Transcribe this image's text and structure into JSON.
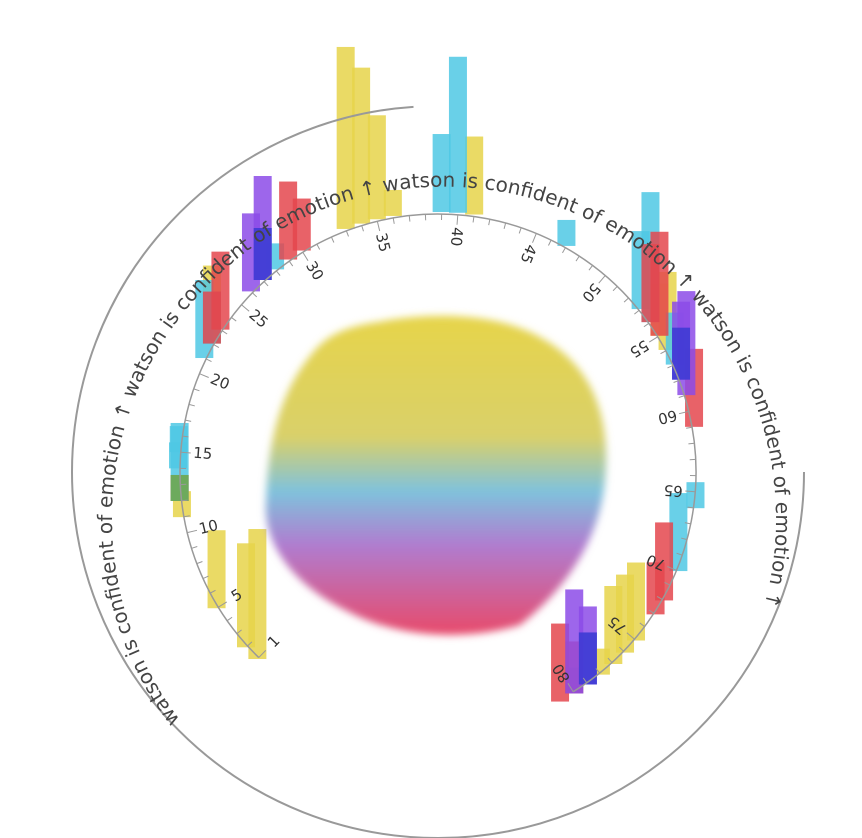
{
  "arc_caption": "watson is confident of emotion ↑ watson is confident of emotion ↑ watson is confident of emotion ↑ watson is confident of emotion ↑",
  "colors": {
    "yellow": "#e6d44a",
    "cyan": "#4fc8e4",
    "red": "#e4474e",
    "purple": "#8c4be8",
    "blue": "#3a3ad2",
    "green": "#5cb85c",
    "axis": "#999999",
    "tick_text": "#333333"
  },
  "chart_data": {
    "type": "radial-bar",
    "axis": {
      "min": 1,
      "max": 80,
      "ticks": [
        1,
        5,
        10,
        15,
        20,
        25,
        30,
        35,
        40,
        45,
        50,
        55,
        60,
        65,
        70,
        75,
        80
      ]
    },
    "legend_caption": "watson is confident of emotion ↑",
    "series": [
      {
        "color": "yellow",
        "values": [
          [
            1,
            5
          ],
          [
            2,
            4
          ],
          [
            5,
            3
          ],
          [
            11,
            1
          ],
          [
            22,
            3
          ],
          [
            33,
            7
          ],
          [
            34,
            6
          ],
          [
            35,
            4
          ],
          [
            36,
            1
          ],
          [
            41,
            3
          ],
          [
            55,
            2
          ],
          [
            56,
            3
          ],
          [
            75,
            3
          ],
          [
            76,
            3
          ],
          [
            77,
            3
          ],
          [
            78,
            1
          ]
        ]
      },
      {
        "color": "cyan",
        "values": [
          [
            12,
            3
          ],
          [
            14,
            1
          ],
          [
            15,
            1
          ],
          [
            21,
            3
          ],
          [
            22,
            2
          ],
          [
            27,
            2
          ],
          [
            28,
            1
          ],
          [
            39,
            3
          ],
          [
            40,
            6
          ],
          [
            47,
            1
          ],
          [
            53,
            3
          ],
          [
            54,
            5
          ],
          [
            57,
            2
          ],
          [
            66,
            1
          ],
          [
            70,
            3
          ],
          [
            79,
            2
          ],
          [
            80,
            1
          ]
        ]
      },
      {
        "color": "red",
        "values": [
          [
            12,
            1
          ],
          [
            22,
            2
          ],
          [
            23,
            3
          ],
          [
            29,
            3
          ],
          [
            30,
            2
          ],
          [
            54,
            3
          ],
          [
            55,
            4
          ],
          [
            61,
            3
          ],
          [
            72,
            3
          ],
          [
            73,
            2
          ],
          [
            80,
            2
          ],
          [
            81,
            3
          ]
        ]
      },
      {
        "color": "purple",
        "values": [
          [
            26,
            3
          ],
          [
            27,
            4
          ],
          [
            58,
            3
          ],
          [
            59,
            4
          ],
          [
            79,
            3
          ],
          [
            80,
            4
          ]
        ]
      },
      {
        "color": "blue",
        "values": [
          [
            27,
            2
          ],
          [
            58,
            2
          ],
          [
            79,
            2
          ]
        ]
      },
      {
        "color": "green",
        "values": [
          [
            12,
            1
          ]
        ]
      }
    ],
    "center_blob": {
      "type": "gradient",
      "colors_top_to_bottom": [
        "yellow",
        "cyan",
        "purple",
        "red"
      ]
    }
  }
}
